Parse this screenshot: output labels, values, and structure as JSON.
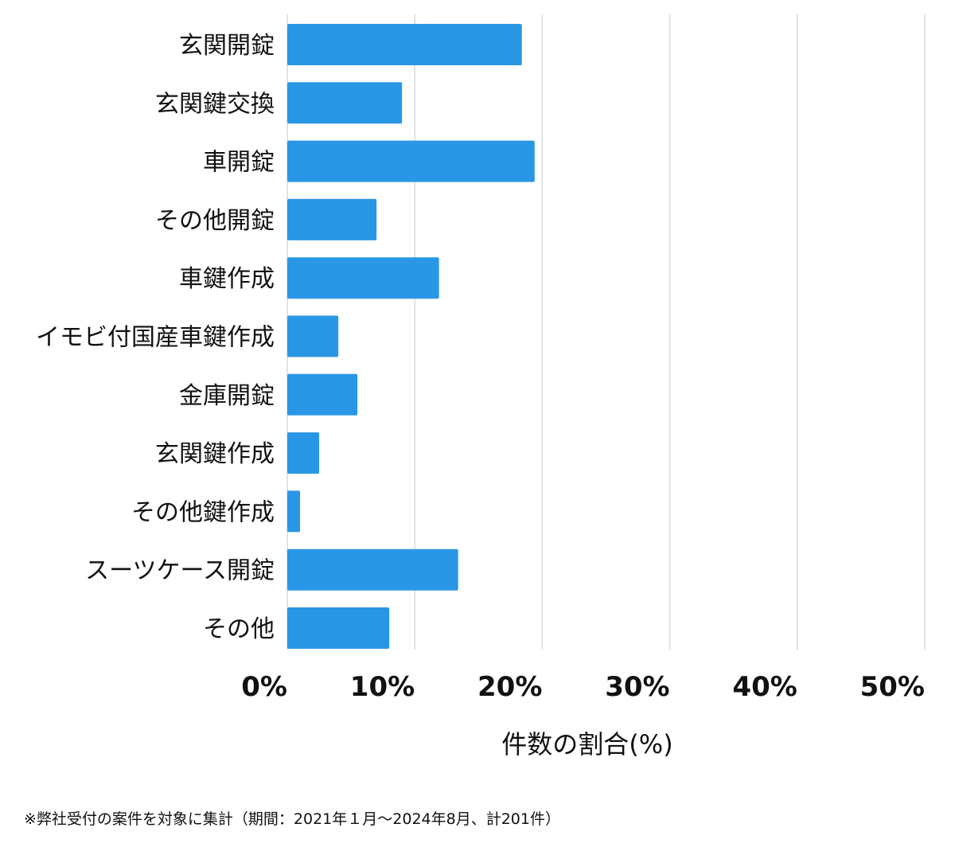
{
  "chart_data": {
    "type": "bar",
    "orientation": "horizontal",
    "categories": [
      "玄関開錠",
      "玄関鍵交換",
      "車開錠",
      "その他開錠",
      "車鍵作成",
      "イモビ付国産車鍵作成",
      "金庫開錠",
      "玄関鍵作成",
      "その他鍵作成",
      "スーツケース開錠",
      "その他"
    ],
    "values": [
      18.4,
      9.0,
      19.4,
      7.0,
      11.9,
      4.0,
      5.5,
      2.5,
      1.0,
      13.4,
      8.0
    ],
    "xlabel": "件数の割合(%)",
    "xlim": [
      0,
      50
    ],
    "xticks": [
      "0%",
      "10%",
      "20%",
      "30%",
      "40%",
      "50%"
    ],
    "xtick_values": [
      0,
      10,
      20,
      30,
      40,
      50
    ],
    "grid": "vertical",
    "bar_color": "#2a96e6",
    "grid_color": "#d9d9d9"
  },
  "footnote": "※弊社受付の案件を対象に集計（期間：2021年１月～2024年8月、計201件）"
}
